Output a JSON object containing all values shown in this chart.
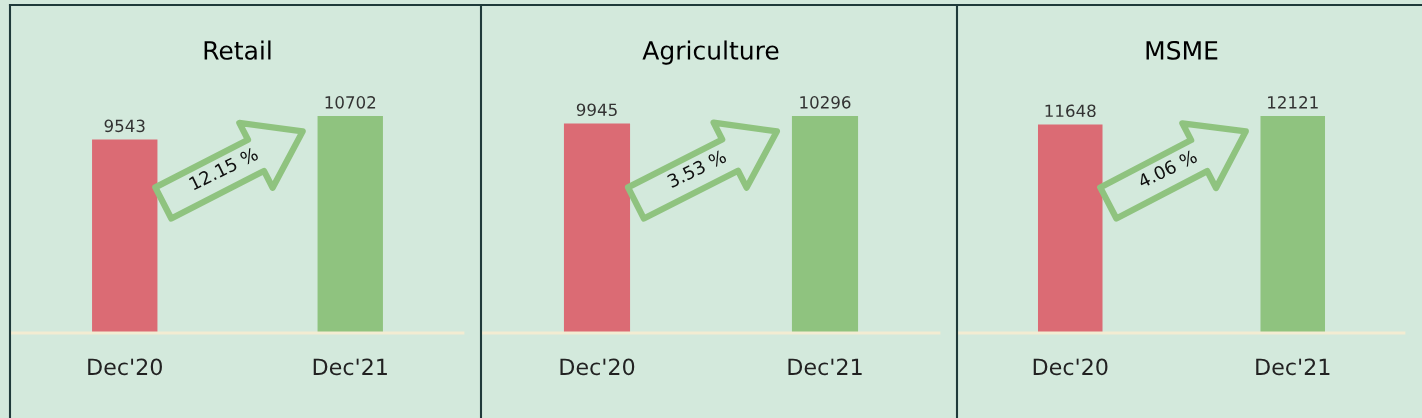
{
  "chart_data": [
    {
      "type": "bar",
      "title": "Retail",
      "categories": [
        "Dec'20",
        "Dec'21"
      ],
      "values": [
        9543,
        10702
      ],
      "colors": [
        "#db6b74",
        "#8fc37f"
      ],
      "data_labels": true,
      "tick_labels": "x",
      "annotations": [
        "12.15 %"
      ]
    },
    {
      "type": "bar",
      "title": "Agriculture",
      "categories": [
        "Dec'20",
        "Dec'21"
      ],
      "values": [
        9945,
        10296
      ],
      "colors": [
        "#db6b74",
        "#8fc37f"
      ],
      "data_labels": true,
      "tick_labels": "x",
      "annotations": [
        "3.53 %"
      ]
    },
    {
      "type": "bar",
      "title": "MSME",
      "categories": [
        "Dec'20",
        "Dec'21"
      ],
      "values": [
        11648,
        12121
      ],
      "colors": [
        "#db6b74",
        "#8fc37f"
      ],
      "data_labels": true,
      "tick_labels": "x",
      "annotations": [
        "4.06 %"
      ]
    }
  ]
}
